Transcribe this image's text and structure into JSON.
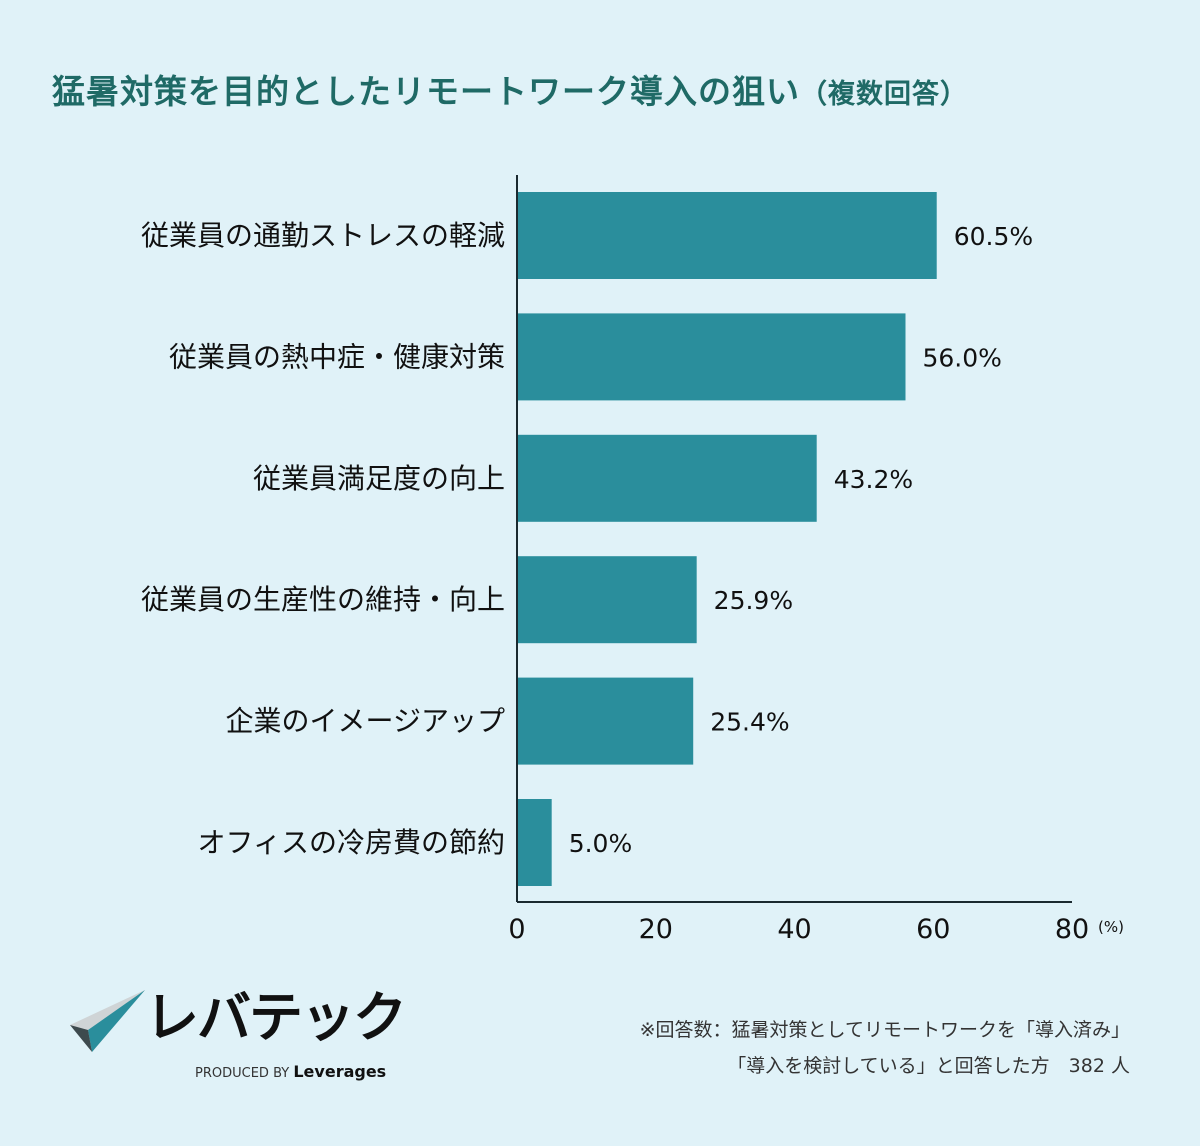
{
  "title": "猛暑対策を目的としたリモートワーク導入の狙い",
  "title_note": "（複数回答）",
  "chart_data": {
    "type": "bar",
    "orientation": "horizontal",
    "title": "猛暑対策を目的としたリモートワーク導入の狙い（複数回答）",
    "categories": [
      "従業員の通勤ストレスの軽減",
      "従業員の熱中症・健康対策",
      "従業員満足度の向上",
      "従業員の生産性の維持・向上",
      "企業のイメージアップ",
      "オフィスの冷房費の節約"
    ],
    "values": [
      60.5,
      56.0,
      43.2,
      25.9,
      25.4,
      5.0
    ],
    "data_labels": [
      "60.5%",
      "56.0%",
      "43.2%",
      "25.9%",
      "25.4%",
      "5.0%"
    ],
    "xlim": [
      0,
      80
    ],
    "xticks": [
      "0",
      "20",
      "40",
      "60",
      "80"
    ],
    "xunit": "(%)",
    "grid": false,
    "bar_color": "#2a8e9c"
  },
  "footnote": [
    "※回答数：猛暑対策としてリモートワークを「導入済み」",
    "「導入を検討している」と回答した方　382 人"
  ],
  "logo": {
    "name": "レバテック",
    "produced_by": "PRODUCED BY",
    "company": "Leverages"
  }
}
